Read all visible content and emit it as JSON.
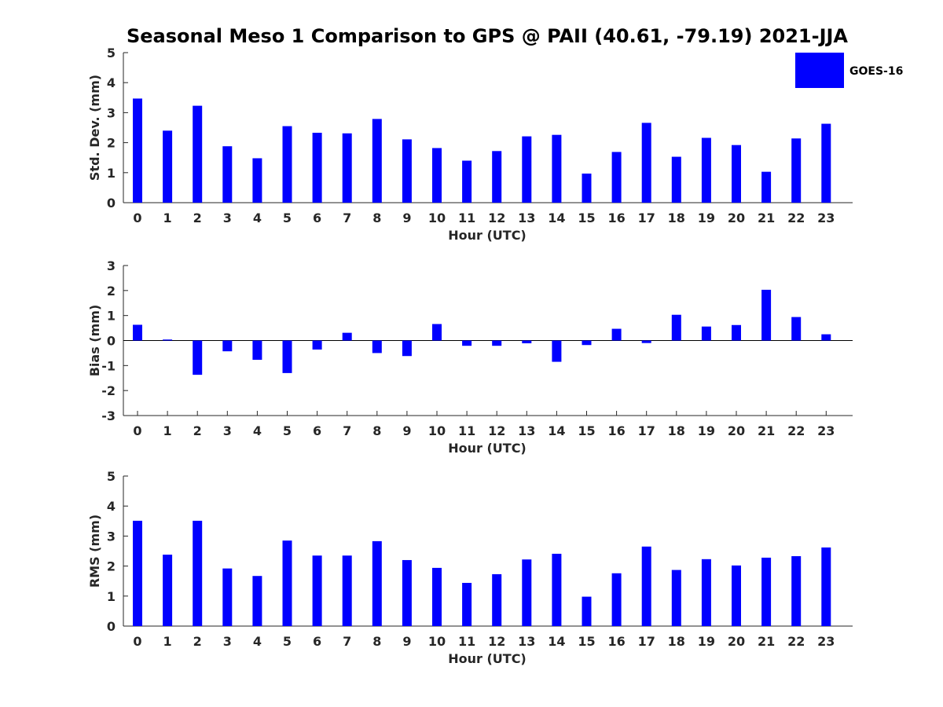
{
  "title": "Seasonal Meso 1 Comparison to GPS @ PAII (40.61, -79.19) 2021-JJA",
  "legend": {
    "label": "GOES-16"
  },
  "colors": {
    "bar": "#0000ff",
    "axis": "#262626",
    "zero_line": "#000000"
  },
  "chart_data": [
    {
      "type": "bar",
      "name": "std-dev",
      "xlabel": "Hour (UTC)",
      "ylabel": "Std. Dev. (mm)",
      "ylim": [
        0,
        5
      ],
      "yticks": [
        "0",
        "1",
        "2",
        "3",
        "4",
        "5"
      ],
      "categories": [
        "0",
        "1",
        "2",
        "3",
        "4",
        "5",
        "6",
        "7",
        "8",
        "9",
        "10",
        "11",
        "12",
        "13",
        "14",
        "15",
        "16",
        "17",
        "18",
        "19",
        "20",
        "21",
        "22",
        "23"
      ],
      "series": [
        {
          "name": "GOES-16",
          "values": [
            3.47,
            2.4,
            3.23,
            1.88,
            1.48,
            2.55,
            2.33,
            2.31,
            2.79,
            2.11,
            1.82,
            1.4,
            1.72,
            2.21,
            2.26,
            0.97,
            1.69,
            2.66,
            1.53,
            2.16,
            1.92,
            1.03,
            2.14,
            2.63
          ]
        }
      ]
    },
    {
      "type": "bar",
      "name": "bias",
      "xlabel": "Hour (UTC)",
      "ylabel": "Bias (mm)",
      "ylim": [
        -3,
        3
      ],
      "yticks": [
        "-3",
        "-2",
        "-1",
        "0",
        "1",
        "2",
        "3"
      ],
      "categories": [
        "0",
        "1",
        "2",
        "3",
        "4",
        "5",
        "6",
        "7",
        "8",
        "9",
        "10",
        "11",
        "12",
        "13",
        "14",
        "15",
        "16",
        "17",
        "18",
        "19",
        "20",
        "21",
        "22",
        "23"
      ],
      "series": [
        {
          "name": "GOES-16",
          "values": [
            0.63,
            0.04,
            -1.37,
            -0.43,
            -0.77,
            -1.3,
            -0.36,
            0.31,
            -0.5,
            -0.62,
            0.66,
            -0.21,
            -0.21,
            -0.11,
            -0.85,
            -0.18,
            0.47,
            -0.1,
            1.03,
            0.56,
            0.62,
            2.03,
            0.94,
            0.25
          ]
        }
      ]
    },
    {
      "type": "bar",
      "name": "rms",
      "xlabel": "Hour (UTC)",
      "ylabel": "RMS (mm)",
      "ylim": [
        0,
        5
      ],
      "yticks": [
        "0",
        "1",
        "2",
        "3",
        "4",
        "5"
      ],
      "categories": [
        "0",
        "1",
        "2",
        "3",
        "4",
        "5",
        "6",
        "7",
        "8",
        "9",
        "10",
        "11",
        "12",
        "13",
        "14",
        "15",
        "16",
        "17",
        "18",
        "19",
        "20",
        "21",
        "22",
        "23"
      ],
      "series": [
        {
          "name": "GOES-16",
          "values": [
            3.51,
            2.38,
            3.51,
            1.92,
            1.67,
            2.85,
            2.35,
            2.35,
            2.83,
            2.2,
            1.94,
            1.44,
            1.73,
            2.22,
            2.41,
            0.98,
            1.76,
            2.65,
            1.87,
            2.23,
            2.02,
            2.28,
            2.33,
            2.62
          ]
        }
      ]
    }
  ]
}
